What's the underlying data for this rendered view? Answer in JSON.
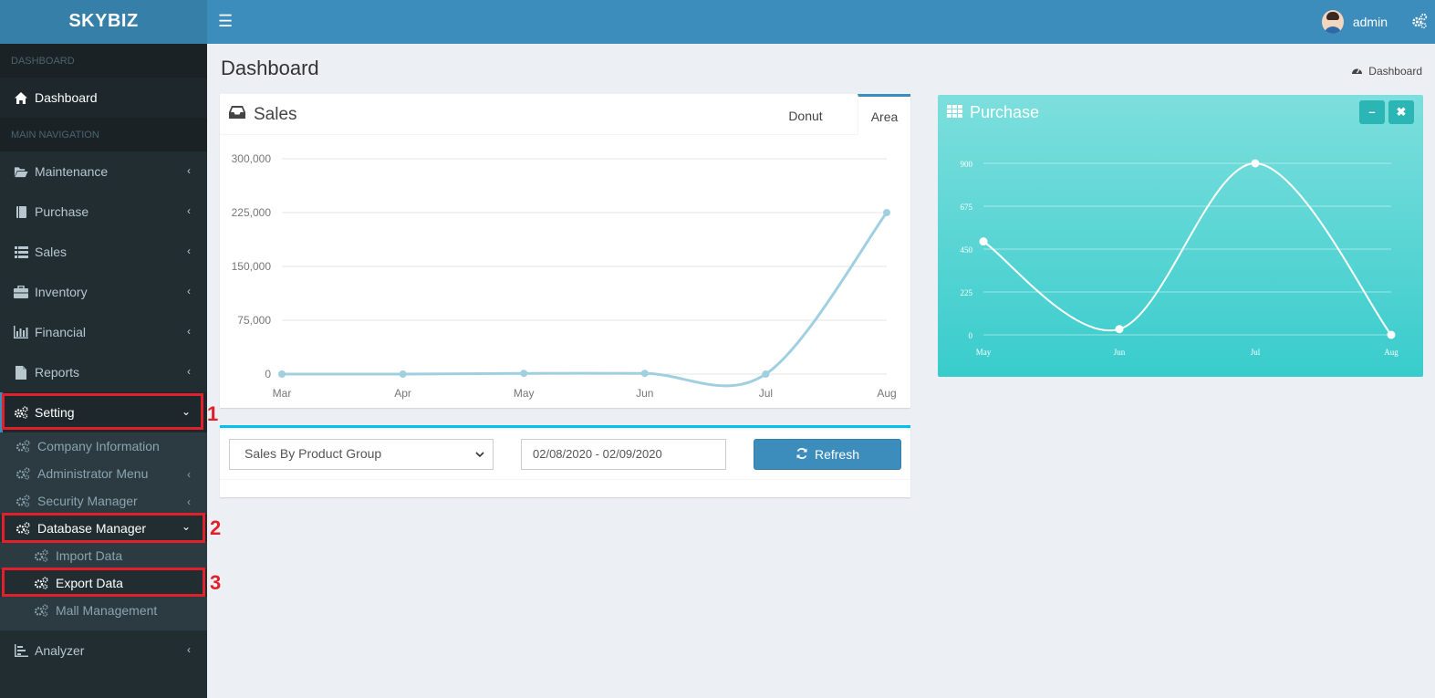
{
  "brand": "SKYBIZ",
  "header": {
    "username": "admin"
  },
  "sidebar": {
    "section_dashboard": "DASHBOARD",
    "dashboard_label": "Dashboard",
    "section_main": "MAIN NAVIGATION",
    "items": [
      {
        "label": "Maintenance",
        "icon": "folder-open-icon"
      },
      {
        "label": "Purchase",
        "icon": "book-icon"
      },
      {
        "label": "Sales",
        "icon": "list-icon"
      },
      {
        "label": "Inventory",
        "icon": "briefcase-icon"
      },
      {
        "label": "Financial",
        "icon": "bar-chart-icon"
      },
      {
        "label": "Reports",
        "icon": "file-icon"
      }
    ],
    "setting": "Setting",
    "setting_sub": {
      "company": "Company Information",
      "admin_menu": "Administrator Menu",
      "security": "Security Manager",
      "database": "Database Manager",
      "import": "Import Data",
      "export": "Export Data",
      "mall": "Mall Management"
    },
    "analyzer": "Analyzer"
  },
  "annotations": [
    "1",
    "2",
    "3"
  ],
  "page": {
    "title": "Dashboard",
    "breadcrumb": "Dashboard"
  },
  "sales": {
    "title": "Sales",
    "tab_donut": "Donut",
    "tab_area": "Area"
  },
  "filters": {
    "report_select": "Sales By Product Group",
    "date_range": "02/08/2020 - 02/09/2020",
    "refresh_label": "Refresh"
  },
  "purchase": {
    "title": "Purchase"
  },
  "colors": {
    "header": "#3c8dbc",
    "sidebar": "#222d32",
    "sales_line": "#a0d0e0",
    "purchase_bg": "#39cccc",
    "highlight": "#e0202a"
  },
  "chart_data": [
    {
      "type": "line",
      "name": "Sales",
      "categories": [
        "Mar",
        "Apr",
        "May",
        "Jun",
        "Jul",
        "Aug"
      ],
      "values": [
        0,
        0,
        1000,
        1000,
        0,
        225000
      ],
      "ylim": [
        0,
        300000
      ],
      "yticks": [
        "300,000",
        "225,000",
        "150,000",
        "75,000",
        "0"
      ],
      "ytick_values": [
        300000,
        225000,
        150000,
        75000,
        0
      ],
      "grid": true
    },
    {
      "type": "line",
      "name": "Purchase",
      "categories": [
        "May",
        "Jun",
        "Jul",
        "Aug"
      ],
      "values": [
        490,
        30,
        900,
        0
      ],
      "ylim": [
        0,
        900
      ],
      "yticks": [
        "900",
        "675",
        "450",
        "225",
        "0"
      ],
      "ytick_values": [
        900,
        675,
        450,
        225,
        0
      ],
      "grid": true
    }
  ]
}
